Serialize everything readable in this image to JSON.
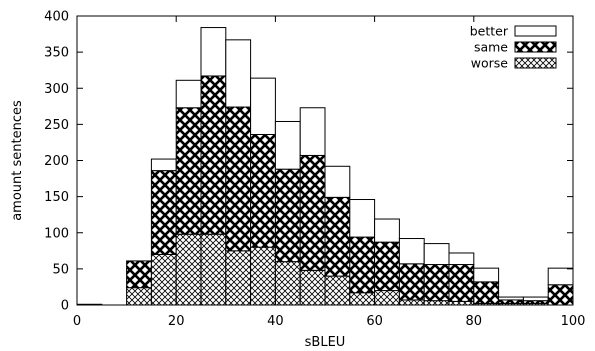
{
  "chart_data": {
    "type": "bar",
    "stacked": true,
    "xlabel": "sBLEU",
    "ylabel": "amount sentences",
    "xlim": [
      0,
      100
    ],
    "ylim": [
      0,
      400
    ],
    "x_ticks": [
      0,
      20,
      40,
      60,
      80,
      100
    ],
    "y_ticks": [
      0,
      50,
      100,
      150,
      200,
      250,
      300,
      350,
      400
    ],
    "bin_width": 5,
    "bins": [
      0,
      5,
      10,
      15,
      20,
      25,
      30,
      35,
      40,
      45,
      50,
      55,
      60,
      65,
      70,
      75,
      80,
      85,
      90,
      95
    ],
    "legend_position": "top-right",
    "series": [
      {
        "name": "worse",
        "pattern": "fine-crosshatch",
        "values": [
          0,
          0,
          24,
          70,
          98,
          98,
          75,
          80,
          60,
          48,
          40,
          17,
          20,
          7,
          6,
          5,
          2,
          2,
          2,
          0
        ]
      },
      {
        "name": "same",
        "pattern": "bold-crosshatch",
        "values": [
          1,
          0,
          37,
          116,
          175,
          219,
          199,
          156,
          128,
          159,
          109,
          77,
          67,
          50,
          50,
          51,
          30,
          5,
          4,
          28
        ]
      },
      {
        "name": "better",
        "pattern": "empty",
        "values": [
          0,
          0,
          0,
          16,
          38,
          67,
          93,
          78,
          66,
          66,
          43,
          52,
          32,
          35,
          29,
          16,
          19,
          4,
          5,
          23
        ]
      }
    ]
  }
}
